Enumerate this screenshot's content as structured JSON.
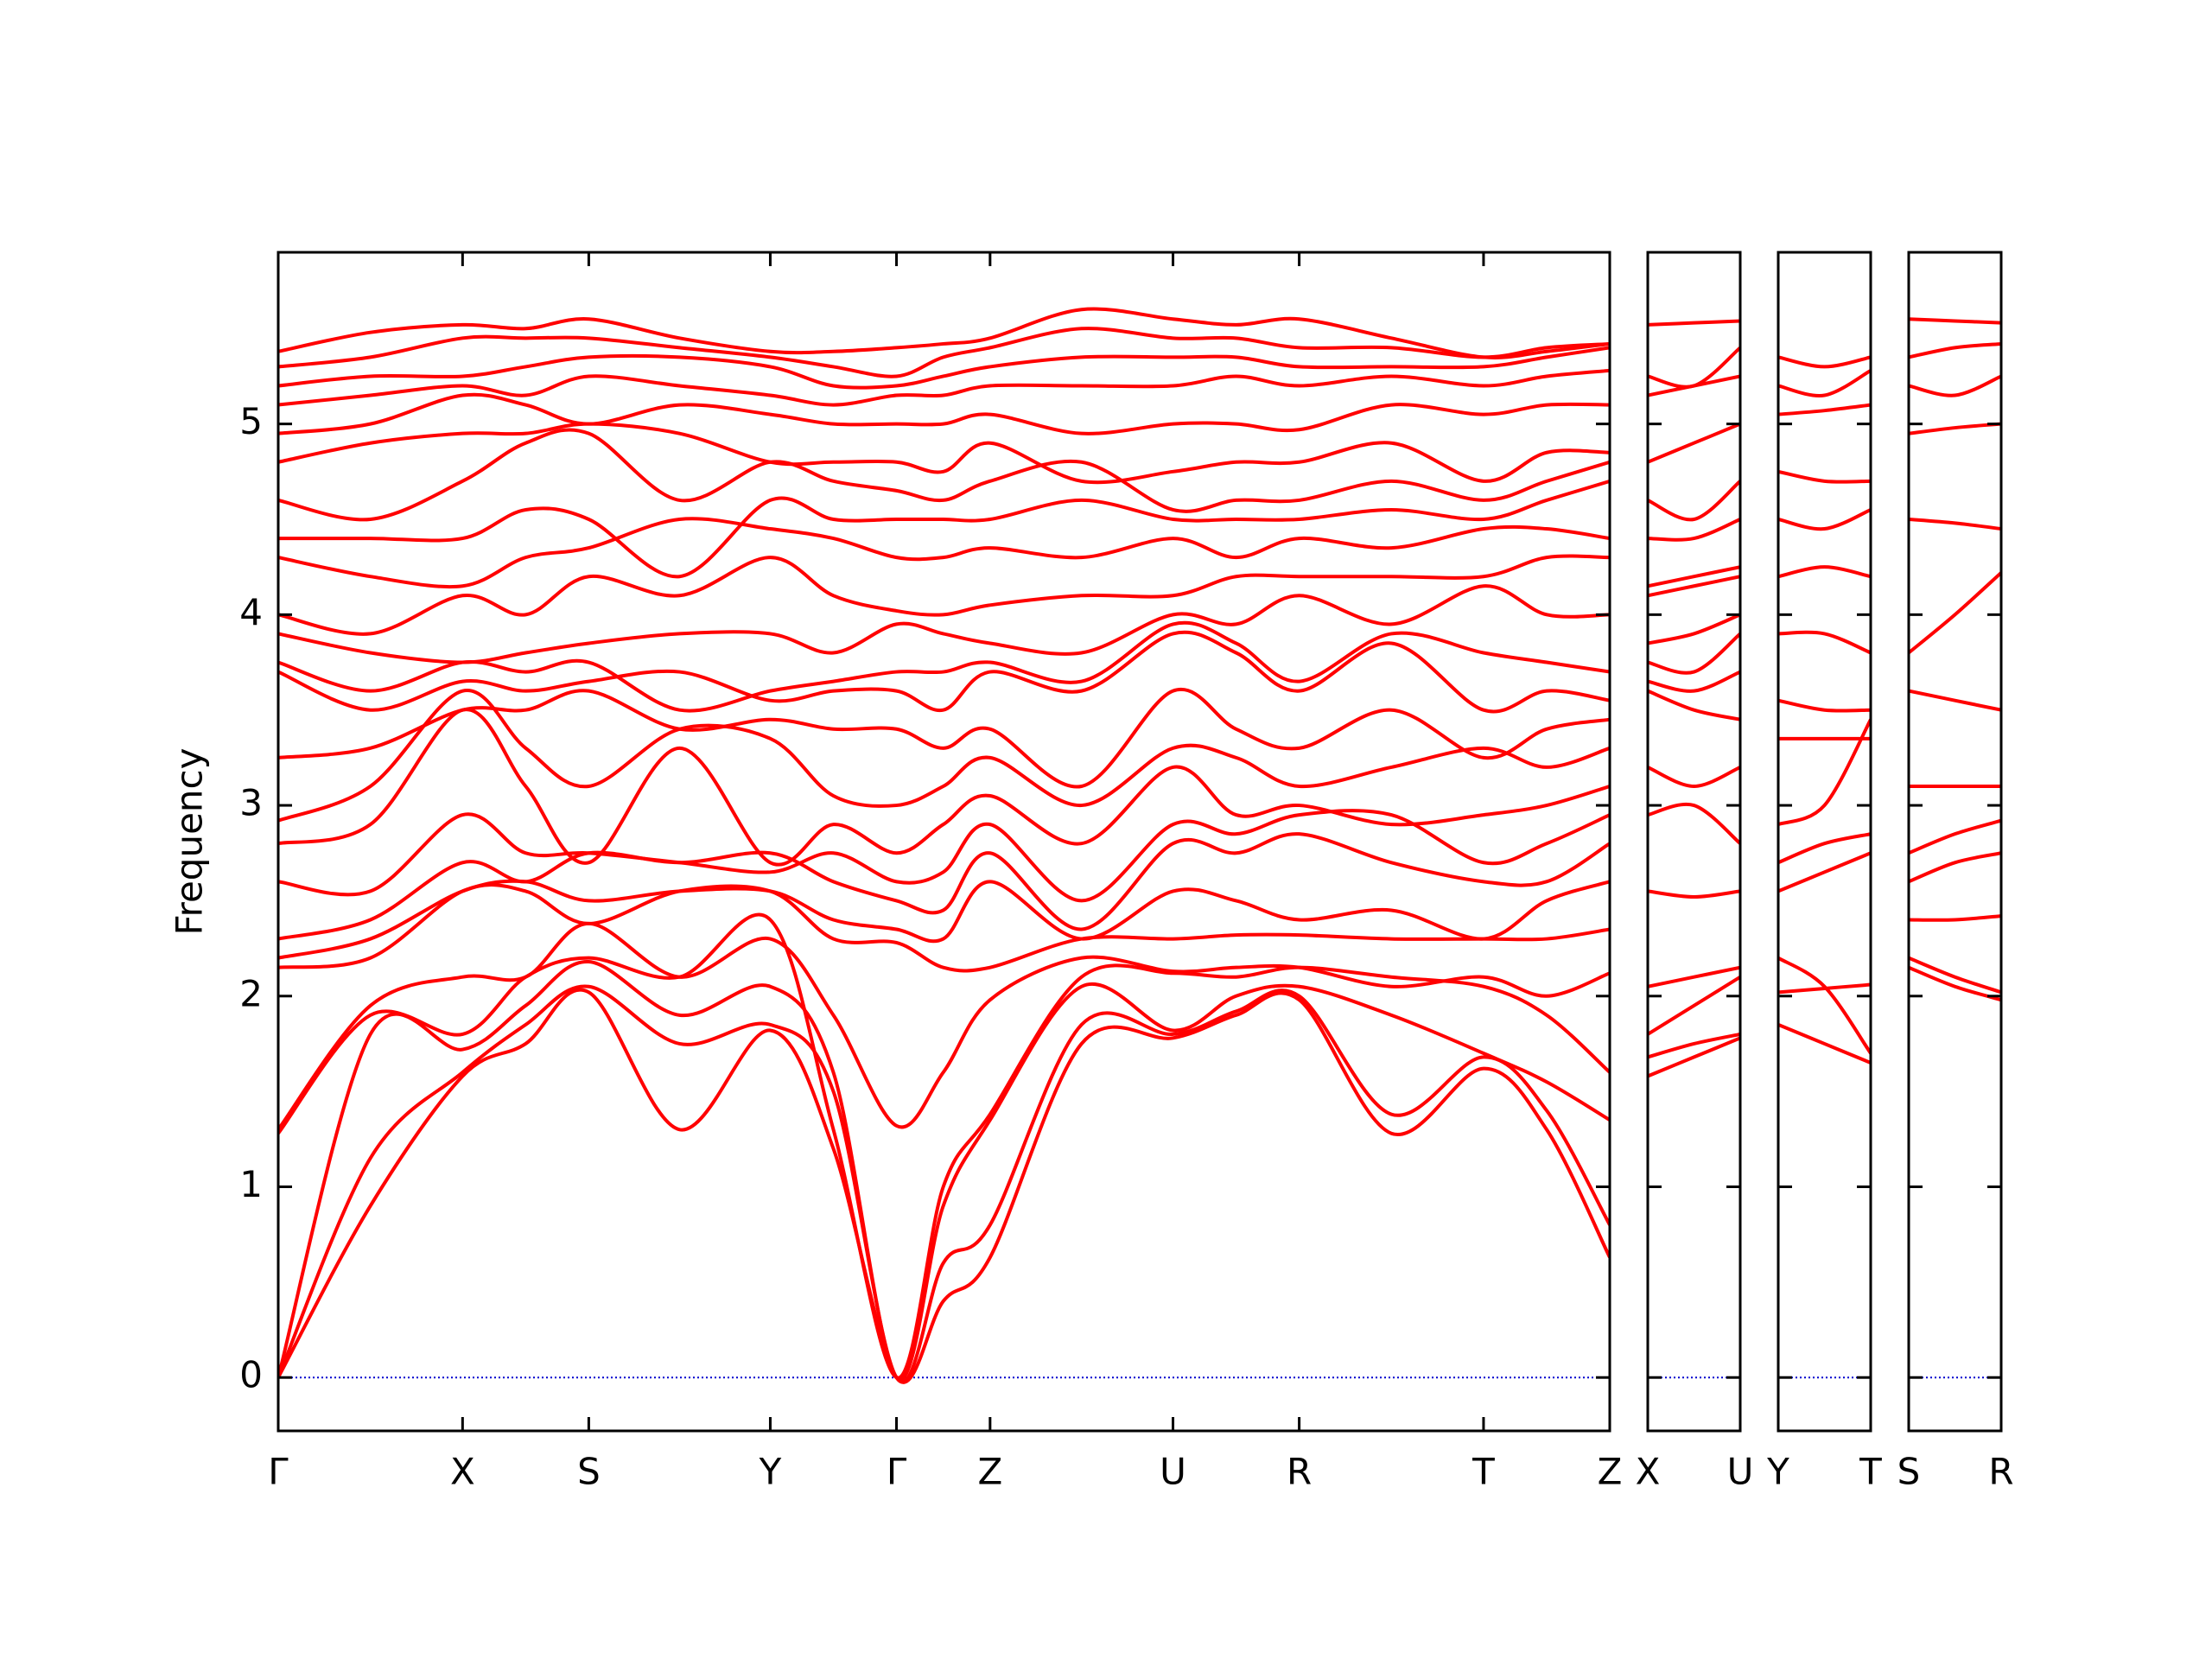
{
  "chart_data": [
    {
      "type": "line",
      "color": "#ff0000",
      "ylabel": "Frequency",
      "ylim": [
        -0.28,
        5.9
      ],
      "yticks": [
        0,
        1,
        2,
        3,
        4,
        5
      ],
      "xlim": [
        0,
        9.39
      ],
      "xticks": [
        {
          "value": 0,
          "label": "Γ"
        },
        {
          "value": 1.3,
          "label": "X"
        },
        {
          "value": 2.19,
          "label": "S"
        },
        {
          "value": 3.47,
          "label": "Y"
        },
        {
          "value": 4.36,
          "label": "Γ"
        },
        {
          "value": 5.02,
          "label": "Z"
        },
        {
          "value": 6.31,
          "label": "U"
        },
        {
          "value": 7.2,
          "label": "R"
        },
        {
          "value": 8.5,
          "label": "T"
        },
        {
          "value": 9.39,
          "label": "Z"
        }
      ],
      "hlines": [
        {
          "value": 0,
          "color": "#0000cd"
        }
      ],
      "x": [
        0,
        0.65,
        1.3,
        1.745,
        2.19,
        2.83,
        3.47,
        3.915,
        4.36,
        4.69,
        5.02,
        5.665,
        6.31,
        6.755,
        7.2,
        7.85,
        8.5,
        8.945,
        9.39
      ],
      "series": [
        {
          "values": [
            0,
            0.9,
            1.58,
            1.75,
            2.02,
            1.3,
            1.82,
            1.2,
            0,
            0.4,
            0.63,
            1.75,
            1.78,
            1.9,
            1.98,
            1.28,
            1.62,
            1.3,
            0.63
          ]
        },
        {
          "values": [
            0,
            1.15,
            1.6,
            1.85,
            2.05,
            1.75,
            1.85,
            1.5,
            0,
            0.6,
            0.8,
            1.85,
            1.8,
            1.92,
            2.0,
            1.38,
            1.68,
            1.4,
            0.8
          ]
        },
        {
          "values": [
            0,
            1.8,
            1.72,
            1.95,
            2.18,
            1.9,
            2.05,
            1.6,
            0,
            0.9,
            1.35,
            2.05,
            1.82,
            2.0,
            2.05,
            1.9,
            1.7,
            1.55,
            1.35
          ]
        },
        {
          "values": [
            1.28,
            1.9,
            1.8,
            2.1,
            2.2,
            2.1,
            2.4,
            1.3,
            0,
            1.0,
            1.38,
            2.1,
            2.12,
            2.1,
            2.15,
            2.1,
            2.05,
            1.9,
            1.6
          ]
        },
        {
          "values": [
            1.3,
            1.95,
            2.1,
            2.1,
            2.38,
            2.1,
            2.3,
            1.9,
            1.32,
            1.6,
            1.98,
            2.2,
            2.13,
            2.15,
            2.15,
            2.05,
            2.1,
            2.0,
            2.12
          ]
        },
        {
          "values": [
            2.15,
            2.2,
            2.55,
            2.55,
            2.38,
            2.55,
            2.55,
            2.3,
            2.28,
            2.15,
            2.15,
            2.3,
            2.3,
            2.32,
            2.32,
            2.3,
            2.3,
            2.3,
            2.35
          ]
        },
        {
          "values": [
            2.2,
            2.3,
            2.55,
            2.6,
            2.5,
            2.55,
            2.55,
            2.4,
            2.35,
            2.3,
            2.6,
            2.3,
            2.55,
            2.5,
            2.4,
            2.45,
            2.3,
            2.5,
            2.6
          ]
        },
        {
          "values": [
            2.3,
            2.4,
            2.7,
            2.6,
            2.75,
            2.7,
            2.75,
            2.6,
            2.5,
            2.45,
            2.75,
            2.35,
            2.8,
            2.75,
            2.85,
            2.7,
            2.6,
            2.6,
            2.8
          ]
        },
        {
          "values": [
            2.6,
            2.55,
            2.95,
            2.75,
            2.75,
            2.7,
            2.65,
            2.75,
            2.6,
            2.65,
            2.9,
            2.5,
            2.9,
            2.85,
            2.95,
            2.95,
            2.7,
            2.8,
            2.95
          ]
        },
        {
          "values": [
            2.8,
            2.9,
            3.5,
            3.1,
            2.7,
            3.3,
            2.7,
            2.9,
            2.75,
            2.9,
            3.05,
            2.8,
            3.2,
            2.95,
            3.0,
            2.9,
            2.95,
            3.0,
            3.1
          ]
        },
        {
          "values": [
            2.92,
            3.1,
            3.6,
            3.3,
            3.1,
            3.4,
            3.35,
            3.05,
            3.0,
            3.1,
            3.25,
            3.0,
            3.3,
            3.25,
            3.1,
            3.2,
            3.3,
            3.2,
            3.3
          ]
        },
        {
          "values": [
            3.25,
            3.3,
            3.5,
            3.5,
            3.6,
            3.4,
            3.45,
            3.4,
            3.4,
            3.3,
            3.4,
            3.1,
            3.6,
            3.4,
            3.3,
            3.5,
            3.25,
            3.4,
            3.45
          ]
        },
        {
          "values": [
            3.7,
            3.5,
            3.65,
            3.6,
            3.65,
            3.7,
            3.55,
            3.6,
            3.6,
            3.5,
            3.7,
            3.6,
            3.9,
            3.8,
            3.6,
            3.85,
            3.5,
            3.6,
            3.55
          ]
        },
        {
          "values": [
            3.75,
            3.6,
            3.75,
            3.7,
            3.75,
            3.5,
            3.6,
            3.65,
            3.7,
            3.7,
            3.75,
            3.65,
            3.95,
            3.85,
            3.65,
            3.9,
            3.8,
            3.75,
            3.7
          ]
        },
        {
          "values": [
            3.9,
            3.8,
            3.75,
            3.8,
            3.85,
            3.9,
            3.9,
            3.8,
            3.95,
            3.9,
            3.85,
            3.8,
            4.0,
            3.95,
            4.1,
            3.95,
            4.15,
            4.0,
            4.0
          ]
        },
        {
          "values": [
            4.0,
            3.9,
            4.1,
            4.0,
            4.2,
            4.1,
            4.3,
            4.1,
            4.02,
            4.0,
            4.05,
            4.1,
            4.1,
            4.2,
            4.2,
            4.2,
            4.2,
            4.3,
            4.3
          ]
        },
        {
          "values": [
            4.3,
            4.2,
            4.15,
            4.3,
            4.35,
            4.5,
            4.45,
            4.4,
            4.3,
            4.3,
            4.35,
            4.3,
            4.4,
            4.3,
            4.4,
            4.35,
            4.45,
            4.45,
            4.4
          ]
        },
        {
          "values": [
            4.4,
            4.4,
            4.4,
            4.55,
            4.5,
            4.2,
            4.6,
            4.5,
            4.5,
            4.5,
            4.5,
            4.6,
            4.5,
            4.5,
            4.5,
            4.55,
            4.5,
            4.6,
            4.7
          ]
        },
        {
          "values": [
            4.6,
            4.5,
            4.7,
            4.9,
            4.95,
            4.6,
            4.8,
            4.7,
            4.65,
            4.6,
            4.7,
            4.8,
            4.55,
            4.6,
            4.6,
            4.7,
            4.6,
            4.7,
            4.8
          ]
        },
        {
          "values": [
            4.8,
            4.9,
            4.95,
            4.95,
            5.0,
            4.95,
            4.8,
            4.8,
            4.8,
            4.75,
            4.9,
            4.7,
            4.75,
            4.8,
            4.8,
            4.9,
            4.7,
            4.85,
            4.85
          ]
        },
        {
          "values": [
            4.95,
            5.0,
            5.15,
            5.1,
            5.0,
            5.1,
            5.05,
            5.0,
            5.0,
            5.0,
            5.05,
            4.95,
            5.0,
            5.0,
            4.97,
            5.1,
            5.05,
            5.1,
            5.1
          ]
        },
        {
          "values": [
            5.1,
            5.15,
            5.2,
            5.15,
            5.25,
            5.2,
            5.15,
            5.1,
            5.15,
            5.15,
            5.2,
            5.2,
            5.2,
            5.25,
            5.2,
            5.25,
            5.2,
            5.25,
            5.28
          ]
        },
        {
          "values": [
            5.2,
            5.25,
            5.25,
            5.3,
            5.35,
            5.35,
            5.3,
            5.2,
            5.2,
            5.25,
            5.3,
            5.35,
            5.35,
            5.35,
            5.3,
            5.3,
            5.3,
            5.35,
            5.4
          ]
        },
        {
          "values": [
            5.3,
            5.35,
            5.45,
            5.45,
            5.45,
            5.4,
            5.35,
            5.3,
            5.25,
            5.35,
            5.4,
            5.5,
            5.45,
            5.45,
            5.4,
            5.4,
            5.35,
            5.4,
            5.42
          ]
        },
        {
          "values": [
            5.38,
            5.48,
            5.52,
            5.5,
            5.55,
            5.45,
            5.38,
            5.38,
            5.4,
            5.42,
            5.45,
            5.6,
            5.55,
            5.52,
            5.55,
            5.45,
            5.35,
            5.38,
            5.42
          ]
        }
      ]
    },
    {
      "type": "line",
      "color": "#ff0000",
      "sharey": true,
      "xlim": [
        0,
        0.65
      ],
      "xticks": [
        {
          "value": 0,
          "label": "X"
        },
        {
          "value": 0.65,
          "label": "U"
        }
      ],
      "hlines": [
        {
          "value": 0,
          "color": "#0000cd"
        }
      ],
      "x": [
        0,
        0.325,
        0.65
      ],
      "series": [
        {
          "values": [
            1.58,
            1.68,
            1.78
          ]
        },
        {
          "values": [
            1.68,
            1.75,
            1.8
          ]
        },
        {
          "values": [
            1.8,
            1.95,
            2.1
          ]
        },
        {
          "values": [
            2.05,
            2.1,
            2.15
          ]
        },
        {
          "values": [
            2.55,
            2.52,
            2.55
          ]
        },
        {
          "values": [
            2.95,
            3.0,
            2.8
          ]
        },
        {
          "values": [
            3.2,
            3.1,
            3.2
          ]
        },
        {
          "values": [
            3.6,
            3.5,
            3.45
          ]
        },
        {
          "values": [
            3.65,
            3.6,
            3.7
          ]
        },
        {
          "values": [
            3.75,
            3.7,
            3.9
          ]
        },
        {
          "values": [
            3.85,
            3.9,
            4.0
          ]
        },
        {
          "values": [
            4.1,
            4.15,
            4.2
          ]
        },
        {
          "values": [
            4.15,
            4.2,
            4.25
          ]
        },
        {
          "values": [
            4.4,
            4.4,
            4.5
          ]
        },
        {
          "values": [
            4.6,
            4.5,
            4.7
          ]
        },
        {
          "values": [
            4.8,
            4.9,
            5.0
          ]
        },
        {
          "values": [
            5.15,
            5.2,
            5.25
          ]
        },
        {
          "values": [
            5.25,
            5.2,
            5.4
          ]
        },
        {
          "values": [
            5.52,
            5.53,
            5.54
          ]
        }
      ]
    },
    {
      "type": "line",
      "color": "#ff0000",
      "sharey": true,
      "xlim": [
        0,
        0.65
      ],
      "xticks": [
        {
          "value": 0,
          "label": "Y"
        },
        {
          "value": 0.65,
          "label": "T"
        }
      ],
      "hlines": [
        {
          "value": 0,
          "color": "#0000cd"
        }
      ],
      "x": [
        0,
        0.325,
        0.65
      ],
      "series": [
        {
          "values": [
            1.85,
            1.75,
            1.65
          ]
        },
        {
          "values": [
            2.02,
            2.04,
            2.06
          ]
        },
        {
          "values": [
            2.2,
            2.05,
            1.7
          ]
        },
        {
          "values": [
            2.55,
            2.65,
            2.75
          ]
        },
        {
          "values": [
            2.7,
            2.8,
            2.85
          ]
        },
        {
          "values": [
            2.9,
            3.0,
            3.45
          ]
        },
        {
          "values": [
            3.35,
            3.35,
            3.35
          ]
        },
        {
          "values": [
            3.55,
            3.5,
            3.5
          ]
        },
        {
          "values": [
            3.9,
            3.9,
            3.8
          ]
        },
        {
          "values": [
            4.2,
            4.25,
            4.2
          ]
        },
        {
          "values": [
            4.5,
            4.45,
            4.55
          ]
        },
        {
          "values": [
            4.75,
            4.7,
            4.7
          ]
        },
        {
          "values": [
            5.05,
            5.07,
            5.1
          ]
        },
        {
          "values": [
            5.2,
            5.15,
            5.28
          ]
        },
        {
          "values": [
            5.35,
            5.3,
            5.35
          ]
        }
      ]
    },
    {
      "type": "line",
      "color": "#ff0000",
      "sharey": true,
      "xlim": [
        0,
        0.65
      ],
      "xticks": [
        {
          "value": 0,
          "label": "S"
        },
        {
          "value": 0.65,
          "label": "R"
        }
      ],
      "hlines": [
        {
          "value": 0,
          "color": "#0000cd"
        }
      ],
      "x": [
        0,
        0.325,
        0.65
      ],
      "series": [
        {
          "values": [
            2.15,
            2.05,
            1.98
          ]
        },
        {
          "values": [
            2.2,
            2.1,
            2.02
          ]
        },
        {
          "values": [
            2.4,
            2.4,
            2.42
          ]
        },
        {
          "values": [
            2.6,
            2.7,
            2.75
          ]
        },
        {
          "values": [
            2.75,
            2.85,
            2.92
          ]
        },
        {
          "values": [
            3.1,
            3.1,
            3.1
          ]
        },
        {
          "values": [
            3.6,
            3.55,
            3.5
          ]
        },
        {
          "values": [
            3.8,
            4.0,
            4.22
          ]
        },
        {
          "values": [
            4.5,
            4.48,
            4.45
          ]
        },
        {
          "values": [
            4.95,
            4.98,
            5.0
          ]
        },
        {
          "values": [
            5.2,
            5.15,
            5.25
          ]
        },
        {
          "values": [
            5.35,
            5.4,
            5.42
          ]
        },
        {
          "values": [
            5.55,
            5.54,
            5.53
          ]
        }
      ]
    }
  ]
}
